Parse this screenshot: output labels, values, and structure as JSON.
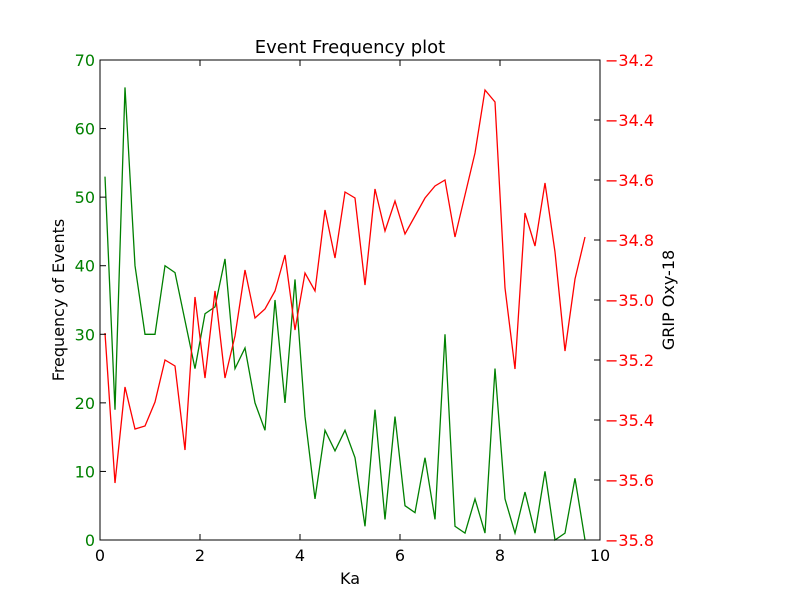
{
  "chart_data": {
    "type": "line",
    "title": "Event Frequency plot",
    "xlabel": "Ka",
    "ylabel_left": "Frequency of Events",
    "ylabel_right": "GRIP Oxy-18",
    "xlim": [
      0,
      10
    ],
    "ylim_left": [
      0,
      70
    ],
    "ylim_right": [
      -35.8,
      -34.2
    ],
    "xticks": [
      "0",
      "2",
      "4",
      "6",
      "8",
      "10"
    ],
    "yticks_left": [
      "0",
      "10",
      "20",
      "30",
      "40",
      "50",
      "60",
      "70"
    ],
    "yticks_right": [
      "−35.8",
      "−35.6",
      "−35.4",
      "−35.2",
      "−35.0",
      "−34.8",
      "−34.6",
      "−34.4",
      "−34.2"
    ],
    "grid": false,
    "series": [
      {
        "axis": "left",
        "color": "#008000",
        "x": [
          0.1,
          0.3,
          0.5,
          0.7,
          0.9,
          1.1,
          1.3,
          1.5,
          1.7,
          1.9,
          2.1,
          2.3,
          2.5,
          2.7,
          2.9,
          3.1,
          3.3,
          3.5,
          3.7,
          3.9,
          4.1,
          4.3,
          4.5,
          4.7,
          4.9,
          5.1,
          5.3,
          5.5,
          5.7,
          5.9,
          6.1,
          6.3,
          6.5,
          6.7,
          6.9,
          7.1,
          7.3,
          7.5,
          7.7,
          7.9,
          8.1,
          8.3,
          8.5,
          8.7,
          8.9,
          9.1,
          9.3,
          9.5,
          9.7
        ],
        "values": [
          53,
          19,
          66,
          40,
          30,
          30,
          40,
          39,
          32,
          25,
          33,
          34,
          41,
          25,
          28,
          20,
          16,
          35,
          20,
          38,
          18,
          6,
          16,
          13,
          16,
          12,
          2,
          19,
          3,
          18,
          5,
          4,
          12,
          3,
          30,
          2,
          1,
          6,
          1,
          25,
          6,
          1,
          7,
          1,
          10,
          0,
          1,
          9,
          0
        ]
      },
      {
        "axis": "right",
        "color": "#ff0000",
        "x": [
          0.1,
          0.3,
          0.5,
          0.7,
          0.9,
          1.1,
          1.3,
          1.5,
          1.7,
          1.9,
          2.1,
          2.3,
          2.5,
          2.7,
          2.9,
          3.1,
          3.3,
          3.5,
          3.7,
          3.9,
          4.1,
          4.3,
          4.5,
          4.7,
          4.9,
          5.1,
          5.3,
          5.5,
          5.7,
          5.9,
          6.1,
          6.3,
          6.5,
          6.7,
          6.9,
          7.1,
          7.3,
          7.5,
          7.7,
          7.9,
          8.1,
          8.3,
          8.5,
          8.7,
          8.9,
          9.1,
          9.3,
          9.5,
          9.7
        ],
        "values": [
          -35.11,
          -35.61,
          -35.29,
          -35.43,
          -35.42,
          -35.34,
          -35.2,
          -35.22,
          -35.5,
          -34.99,
          -35.26,
          -34.97,
          -35.26,
          -35.12,
          -34.9,
          -35.06,
          -35.03,
          -34.97,
          -34.85,
          -35.1,
          -34.91,
          -34.97,
          -34.7,
          -34.86,
          -34.64,
          -34.66,
          -34.95,
          -34.63,
          -34.77,
          -34.67,
          -34.78,
          -34.72,
          -34.66,
          -34.62,
          -34.6,
          -34.79,
          -34.65,
          -34.51,
          -34.3,
          -34.34,
          -34.96,
          -35.23,
          -34.71,
          -34.82,
          -34.61,
          -34.84,
          -35.17,
          -34.93,
          -34.79
        ]
      }
    ]
  }
}
